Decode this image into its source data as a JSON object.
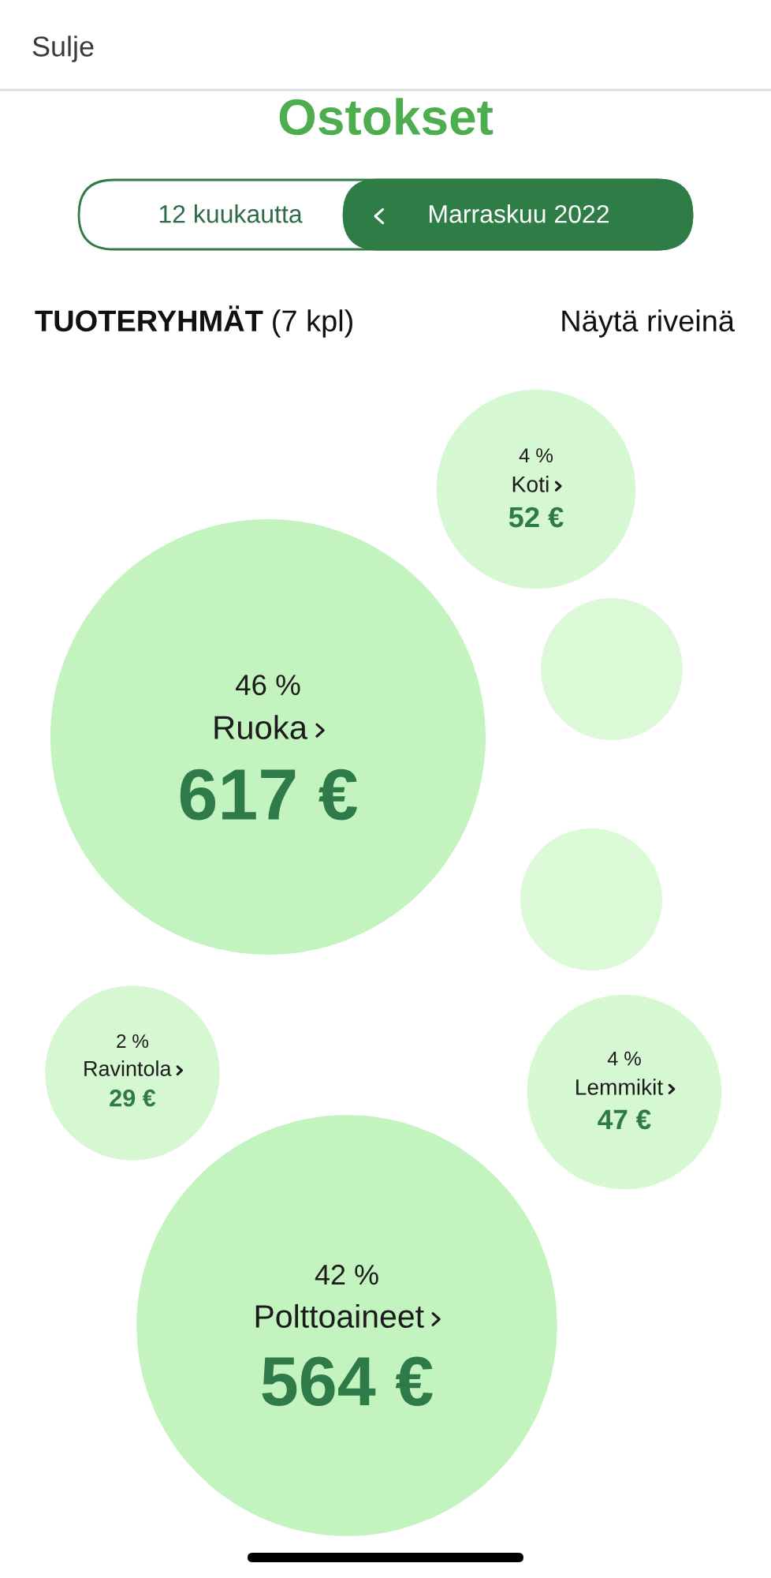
{
  "chart_data": {
    "type": "other",
    "title": "Ostokset",
    "annotations": [
      "Sulje",
      "12 kuukautta",
      "Marraskuu 2022",
      "TUOTERYHMÄT",
      "(7 kpl)",
      "Näytä riveinä",
      {
        "text": "4 %",
        "x": "Koti"
      },
      {
        "text": "46 %",
        "x": "Ruoka"
      },
      {
        "text": "2 %",
        "x": "Ravintola"
      },
      {
        "text": "4 %",
        "x": "Lemmikit"
      },
      {
        "text": "42 %",
        "x": "Polttoaineet"
      }
    ],
    "categories": [
      "Koti",
      null,
      "Ruoka",
      null,
      "Ravintola",
      "Lemmikit",
      "Polttoaineet"
    ],
    "values": [
      52,
      null,
      617,
      null,
      29,
      47,
      564
    ],
    "value_labels": [
      "52 €",
      null,
      "617 €",
      null,
      "29 €",
      "47 €",
      "564 €"
    ],
    "colors": [
      "#d5f7d1",
      "#dcf9d8",
      "#c3f4bf",
      "#dcf9d8",
      "#d5f7d1",
      "#d5f7d1",
      "#c3f4bf"
    ]
  }
}
